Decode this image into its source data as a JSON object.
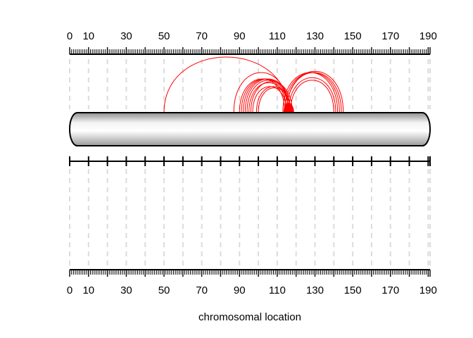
{
  "chart_data": {
    "type": "arc-diagram",
    "title": "",
    "xlabel": "chromosomal location",
    "ylabel": "",
    "xlim": [
      0,
      191
    ],
    "tick_labels": [
      "0",
      "10",
      "30",
      "50",
      "70",
      "90",
      "110",
      "130",
      "150",
      "170",
      "190"
    ],
    "tick_values": [
      0,
      10,
      30,
      50,
      70,
      90,
      110,
      130,
      150,
      170,
      190
    ],
    "major_tick_values": [
      0,
      10,
      20,
      30,
      40,
      50,
      60,
      70,
      80,
      90,
      100,
      110,
      120,
      130,
      140,
      150,
      160,
      170,
      180,
      190
    ],
    "grid": true,
    "arc_color": "#ff0000",
    "chromosome_fill": "#d9d9d9",
    "arcs": [
      {
        "from": 50,
        "to": 116
      },
      {
        "from": 87,
        "to": 116
      },
      {
        "from": 90,
        "to": 114
      },
      {
        "from": 91,
        "to": 115
      },
      {
        "from": 92,
        "to": 116
      },
      {
        "from": 93,
        "to": 117
      },
      {
        "from": 94,
        "to": 117
      },
      {
        "from": 95,
        "to": 116
      },
      {
        "from": 96,
        "to": 118
      },
      {
        "from": 97,
        "to": 115
      },
      {
        "from": 99,
        "to": 117
      },
      {
        "from": 100,
        "to": 117
      },
      {
        "from": 113,
        "to": 142
      },
      {
        "from": 114,
        "to": 143
      },
      {
        "from": 115,
        "to": 144
      },
      {
        "from": 115,
        "to": 145
      },
      {
        "from": 116,
        "to": 141
      },
      {
        "from": 117,
        "to": 140
      },
      {
        "from": 113.5,
        "to": 118.5
      },
      {
        "from": 113.7,
        "to": 118.2
      },
      {
        "from": 114,
        "to": 118
      },
      {
        "from": 114.2,
        "to": 117.6
      },
      {
        "from": 114.4,
        "to": 117.8
      },
      {
        "from": 114.6,
        "to": 117.3
      },
      {
        "from": 114.8,
        "to": 117.5
      },
      {
        "from": 115,
        "to": 117
      },
      {
        "from": 115.2,
        "to": 116.8
      },
      {
        "from": 113.9,
        "to": 117.1
      },
      {
        "from": 115.4,
        "to": 118.3
      },
      {
        "from": 113.6,
        "to": 116.6
      },
      {
        "from": 114.1,
        "to": 116.4
      },
      {
        "from": 114.7,
        "to": 118.7
      },
      {
        "from": 115.6,
        "to": 117.9
      },
      {
        "from": 113.8,
        "to": 117.4
      }
    ]
  }
}
